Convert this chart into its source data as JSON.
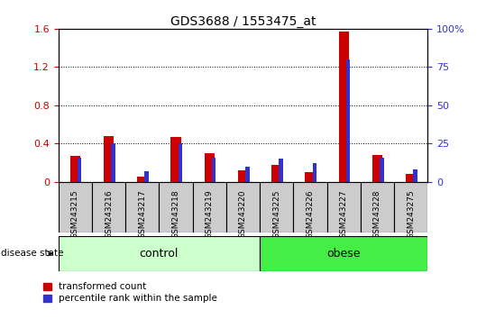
{
  "title": "GDS3688 / 1553475_at",
  "samples": [
    "GSM243215",
    "GSM243216",
    "GSM243217",
    "GSM243218",
    "GSM243219",
    "GSM243220",
    "GSM243225",
    "GSM243226",
    "GSM243227",
    "GSM243228",
    "GSM243275"
  ],
  "red_values": [
    0.27,
    0.48,
    0.05,
    0.47,
    0.3,
    0.12,
    0.18,
    0.1,
    1.57,
    0.28,
    0.08
  ],
  "blue_values_pct": [
    16,
    25,
    7,
    25,
    16,
    10,
    15,
    12,
    80,
    16,
    8
  ],
  "red_color": "#cc0000",
  "blue_color": "#3333cc",
  "ylim_left": [
    0,
    1.6
  ],
  "ylim_right": [
    0,
    100
  ],
  "yticks_left": [
    0,
    0.4,
    0.8,
    1.2,
    1.6
  ],
  "yticks_right": [
    0,
    25,
    50,
    75,
    100
  ],
  "ytick_labels_left": [
    "0",
    "0.4",
    "0.8",
    "1.2",
    "1.6"
  ],
  "ytick_labels_right": [
    "0",
    "25",
    "50",
    "75",
    "100%"
  ],
  "groups": [
    {
      "label": "control",
      "start": 0,
      "end": 5,
      "color": "#ccffcc"
    },
    {
      "label": "obese",
      "start": 6,
      "end": 10,
      "color": "#44ee44"
    }
  ],
  "disease_state_label": "disease state",
  "legend_red": "transformed count",
  "legend_blue": "percentile rank within the sample",
  "background_color": "#ffffff",
  "plot_bg_color": "#ffffff",
  "title_fontsize": 10,
  "label_area_color": "#cccccc"
}
